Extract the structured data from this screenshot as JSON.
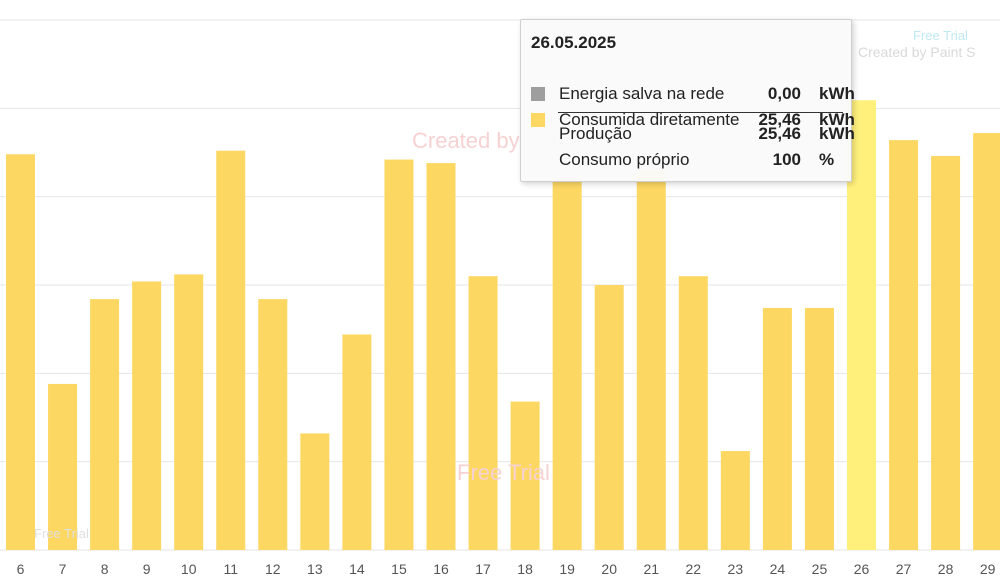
{
  "chart_data": {
    "type": "bar",
    "categories": [
      "6",
      "7",
      "8",
      "9",
      "10",
      "11",
      "12",
      "13",
      "14",
      "15",
      "16",
      "17",
      "18",
      "19",
      "20",
      "21",
      "22",
      "23",
      "24",
      "25",
      "26",
      "27",
      "28",
      "29"
    ],
    "series": [
      {
        "name": "Energia salva na rede",
        "values": [
          0,
          0,
          0,
          0,
          0,
          0,
          0,
          0,
          0,
          0,
          0,
          0,
          0,
          0,
          0,
          0,
          0,
          0,
          0,
          0,
          0,
          0,
          0,
          0
        ]
      },
      {
        "name": "Consumida diretamente",
        "values": [
          22.4,
          9.4,
          14.2,
          15.2,
          15.6,
          22.6,
          14.2,
          6.6,
          12.2,
          22.1,
          21.9,
          15.5,
          8.4,
          21.0,
          15.0,
          21.5,
          15.5,
          5.6,
          13.7,
          13.7,
          25.46,
          23.2,
          22.3,
          23.6
        ]
      }
    ],
    "highlight_category": "26",
    "ylim": [
      0,
      30
    ],
    "grid": true,
    "title": "",
    "xlabel": "",
    "ylabel": ""
  },
  "colors": {
    "bar": "#fcd762",
    "bar_highlight": "#fff07c",
    "grid": "#e6e6e6",
    "swatch_grid": "#9e9e9e",
    "swatch_direct": "#fcd762"
  },
  "tooltip": {
    "date": "26.05.2025",
    "rows": [
      {
        "label": "Energia salva na rede",
        "value": "0,00",
        "unit": "kWh"
      },
      {
        "label": "Consumida diretamente",
        "value": "25,46",
        "unit": "kWh"
      }
    ],
    "summary": [
      {
        "label": "Produção",
        "value": "25,46",
        "unit": "kWh"
      },
      {
        "label": "Consumo próprio",
        "value": "100",
        "unit": "%"
      }
    ]
  },
  "watermarks": {
    "free_trial": "Free Trial",
    "created_by": "Created by Paint S"
  }
}
